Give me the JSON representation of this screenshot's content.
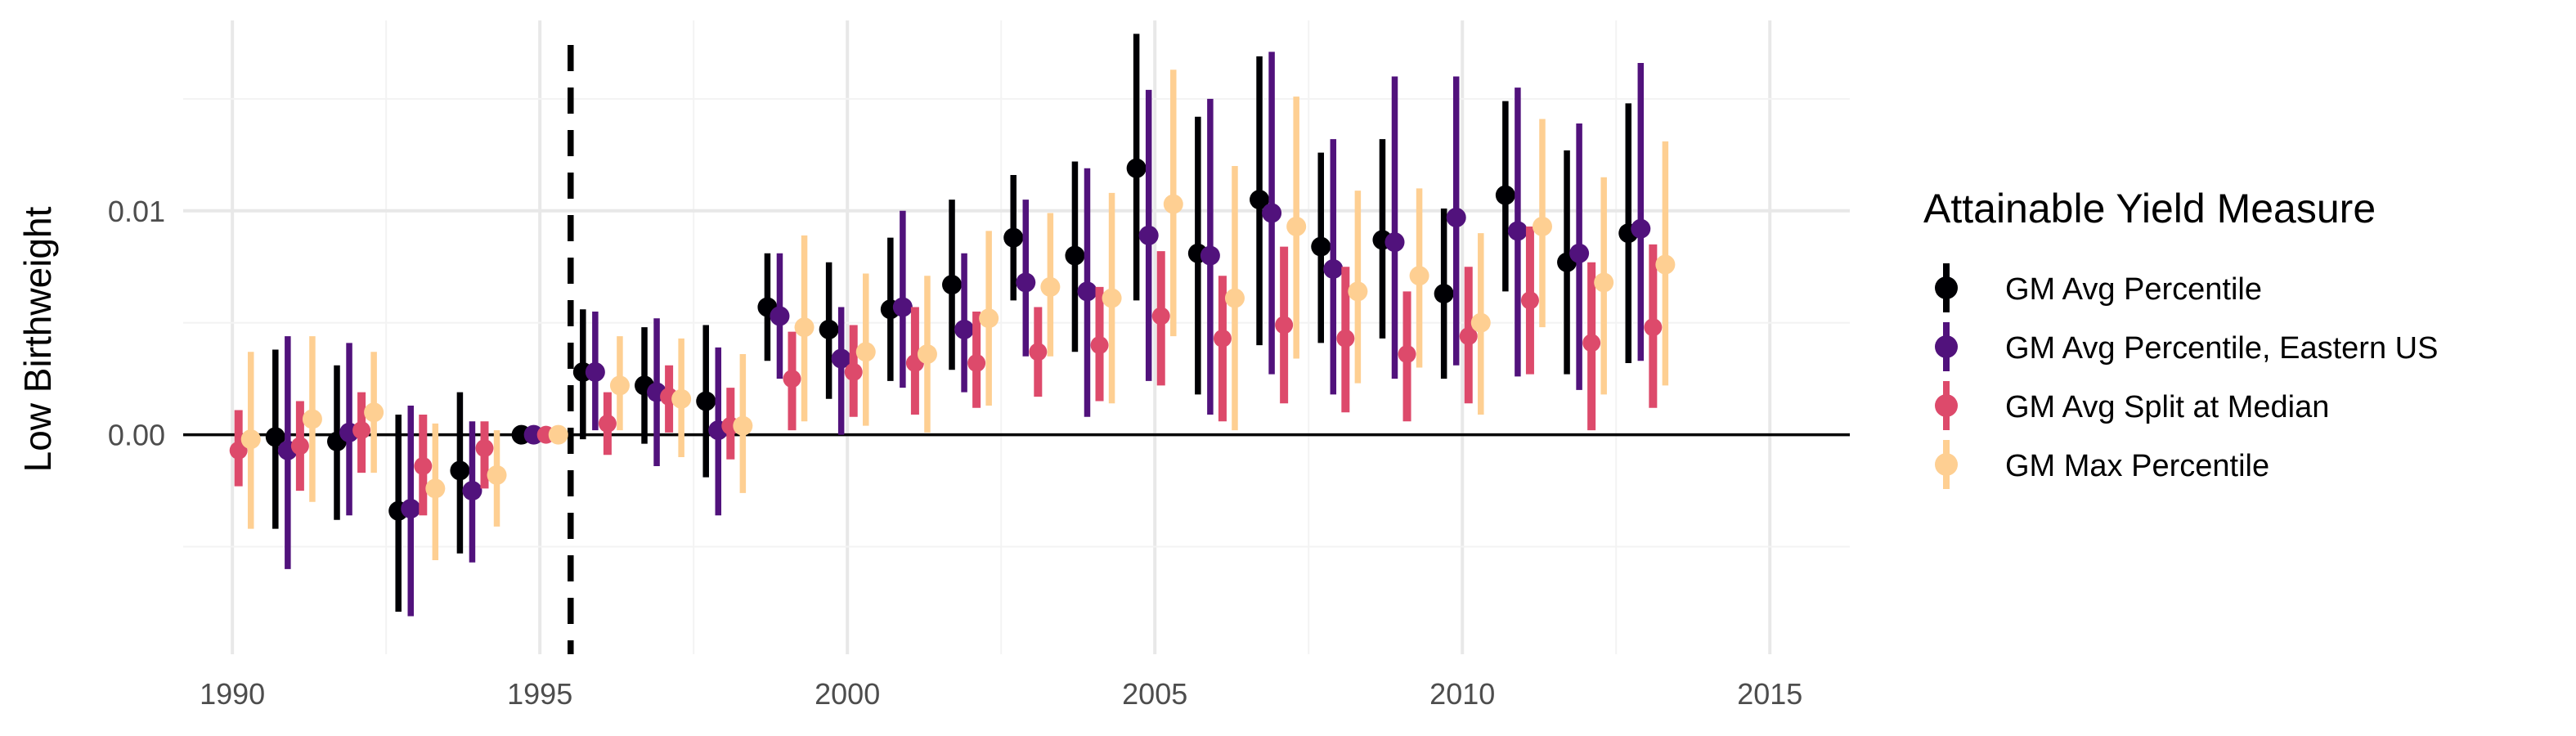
{
  "chart_data": {
    "type": "scatter",
    "subtype": "point-range (coefficient plot with error bars, dodged by series)",
    "title": "",
    "xlabel": "",
    "ylabel": "Low Birthweight",
    "xlim": [
      1989.2,
      2016.3
    ],
    "ylim": [
      -0.0098,
      0.0185
    ],
    "x_ticks": [
      1990,
      1995,
      2000,
      2005,
      2010,
      2015
    ],
    "x_tick_labels": [
      "1990",
      "1995",
      "2000",
      "2005",
      "2010",
      "2015"
    ],
    "y_ticks": [
      0.0,
      0.01
    ],
    "y_tick_labels": [
      "0.00",
      "0.01"
    ],
    "grid": true,
    "zero_line": true,
    "vline": {
      "x": 1995.5,
      "style": "dashed",
      "color": "#000000"
    },
    "legend": {
      "title": "Attainable Yield Measure",
      "position": "right"
    },
    "years": [
      1990,
      1991,
      1992,
      1993,
      1994,
      1995,
      1996,
      1997,
      1998,
      1999,
      2000,
      2001,
      2002,
      2003,
      2004,
      2005,
      2006,
      2007,
      2008,
      2009,
      2010,
      2011,
      2012,
      2013
    ],
    "series": [
      {
        "name": "GM Avg Percentile",
        "color": "#000004",
        "estimate": [
          null,
          -0.0001,
          -0.0003,
          -0.0034,
          -0.0016,
          0.0,
          0.0028,
          0.0022,
          0.0015,
          0.0057,
          0.0047,
          0.0056,
          0.0067,
          0.0088,
          0.008,
          0.0119,
          0.0081,
          0.0105,
          0.0084,
          0.0087,
          0.0063,
          0.0107,
          0.0077,
          0.009
        ],
        "lower": [
          null,
          -0.0042,
          -0.0038,
          -0.0079,
          -0.0053,
          0.0,
          -0.0002,
          -0.0004,
          -0.0019,
          0.0033,
          0.0016,
          0.0024,
          0.0029,
          0.006,
          0.0037,
          0.006,
          0.0018,
          0.004,
          0.0041,
          0.0043,
          0.0025,
          0.0064,
          0.0027,
          0.0032
        ],
        "upper": [
          null,
          0.0038,
          0.0031,
          0.0009,
          0.0019,
          0.0,
          0.0056,
          0.0048,
          0.0049,
          0.0081,
          0.0077,
          0.0088,
          0.0105,
          0.0116,
          0.0122,
          0.0179,
          0.0142,
          0.0169,
          0.0126,
          0.0132,
          0.0101,
          0.0149,
          0.0127,
          0.0148
        ]
      },
      {
        "name": "GM Avg Percentile, Eastern US",
        "color": "#51127C",
        "estimate": [
          null,
          -0.0007,
          0.0001,
          -0.0033,
          -0.0025,
          0.0,
          0.0028,
          0.0019,
          0.0002,
          0.0053,
          0.0034,
          0.0057,
          0.0047,
          0.0068,
          0.0064,
          0.0089,
          0.008,
          0.0099,
          0.0074,
          0.0086,
          0.0097,
          0.0091,
          0.0081,
          0.0092
        ],
        "lower": [
          null,
          -0.006,
          -0.0036,
          -0.0081,
          -0.0057,
          0.0,
          0.0002,
          -0.0014,
          -0.0036,
          0.0025,
          0.0,
          0.0021,
          0.0019,
          0.0035,
          0.0008,
          0.0024,
          0.0009,
          0.0027,
          0.0018,
          0.0025,
          0.0031,
          0.0026,
          0.002,
          0.0033
        ],
        "upper": [
          null,
          0.0044,
          0.0041,
          0.0013,
          0.0006,
          0.0,
          0.0055,
          0.0052,
          0.0039,
          0.0081,
          0.0057,
          0.01,
          0.0081,
          0.0105,
          0.0119,
          0.0154,
          0.015,
          0.0171,
          0.0132,
          0.016,
          0.016,
          0.0155,
          0.0139,
          0.0166
        ]
      },
      {
        "name": "GM Avg Split at Median",
        "color": "#DD4A6B",
        "estimate": [
          -0.0007,
          -0.0005,
          0.0002,
          -0.0014,
          -0.0006,
          0.0,
          0.0005,
          0.0017,
          0.0004,
          0.0025,
          0.0028,
          0.0032,
          0.0032,
          0.0037,
          0.004,
          0.0053,
          0.0043,
          0.0049,
          0.0043,
          0.0036,
          0.0044,
          0.006,
          0.0041,
          0.0048
        ],
        "lower": [
          -0.0023,
          -0.0025,
          -0.0017,
          -0.0036,
          -0.0024,
          0.0,
          -0.0009,
          0.0001,
          -0.0011,
          0.0002,
          0.0008,
          0.0009,
          0.0012,
          0.0017,
          0.0015,
          0.0022,
          0.0006,
          0.0014,
          0.001,
          0.0006,
          0.0014,
          0.0027,
          0.0002,
          0.0012
        ],
        "upper": [
          0.0011,
          0.0015,
          0.0019,
          0.0009,
          0.0006,
          0.0,
          0.0019,
          0.0031,
          0.0021,
          0.0046,
          0.0049,
          0.0057,
          0.0055,
          0.0057,
          0.0066,
          0.0082,
          0.0071,
          0.0084,
          0.0075,
          0.0064,
          0.0075,
          0.0093,
          0.0077,
          0.0085
        ]
      },
      {
        "name": "GM Max Percentile",
        "color": "#FECF92",
        "estimate": [
          -0.0002,
          0.0007,
          0.001,
          -0.0024,
          -0.0018,
          0.0,
          0.0022,
          0.0016,
          0.0004,
          0.0048,
          0.0037,
          0.0036,
          0.0052,
          0.0066,
          0.0061,
          0.0103,
          0.0061,
          0.0093,
          0.0064,
          0.0071,
          0.005,
          0.0093,
          0.0068,
          0.0076
        ],
        "lower": [
          -0.0042,
          -0.003,
          -0.0017,
          -0.0056,
          -0.0041,
          0.0,
          0.0002,
          -0.001,
          -0.0026,
          0.0006,
          0.0004,
          0.0001,
          0.0013,
          0.0035,
          0.0014,
          0.0044,
          0.0002,
          0.0034,
          0.0023,
          0.003,
          0.0009,
          0.0048,
          0.0018,
          0.0022
        ],
        "upper": [
          0.0037,
          0.0044,
          0.0037,
          0.0005,
          0.0002,
          0.0,
          0.0044,
          0.0043,
          0.0036,
          0.0089,
          0.0072,
          0.0071,
          0.0091,
          0.0099,
          0.0108,
          0.0163,
          0.012,
          0.0151,
          0.0109,
          0.011,
          0.009,
          0.0141,
          0.0115,
          0.0131
        ]
      }
    ]
  }
}
